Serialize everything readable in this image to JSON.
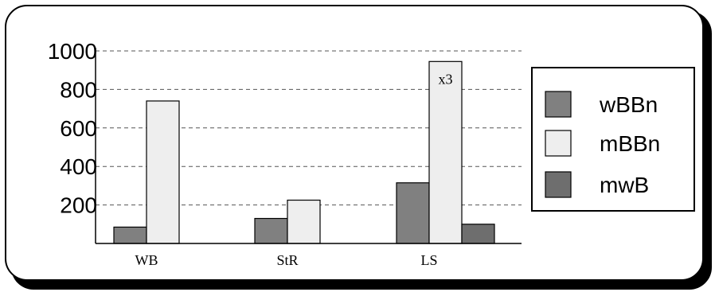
{
  "chart_data": {
    "type": "bar",
    "categories": [
      "WB",
      "StR",
      "LS"
    ],
    "series": [
      {
        "name": "wBBn",
        "values": [
          85,
          130,
          315
        ],
        "color": "#808080"
      },
      {
        "name": "mBBn",
        "values": [
          740,
          225,
          945
        ],
        "color": "#eeeeee"
      },
      {
        "name": "mwB",
        "values": [
          null,
          null,
          100
        ],
        "color": "#6e6e6e"
      }
    ],
    "yticks": [
      200,
      400,
      600,
      800,
      1000
    ],
    "ylim": [
      0,
      1000
    ],
    "grid": "dashed horizontal",
    "legend": "right",
    "annotations": [
      {
        "text": "x3",
        "category": "LS",
        "series": "mBBn"
      }
    ]
  }
}
